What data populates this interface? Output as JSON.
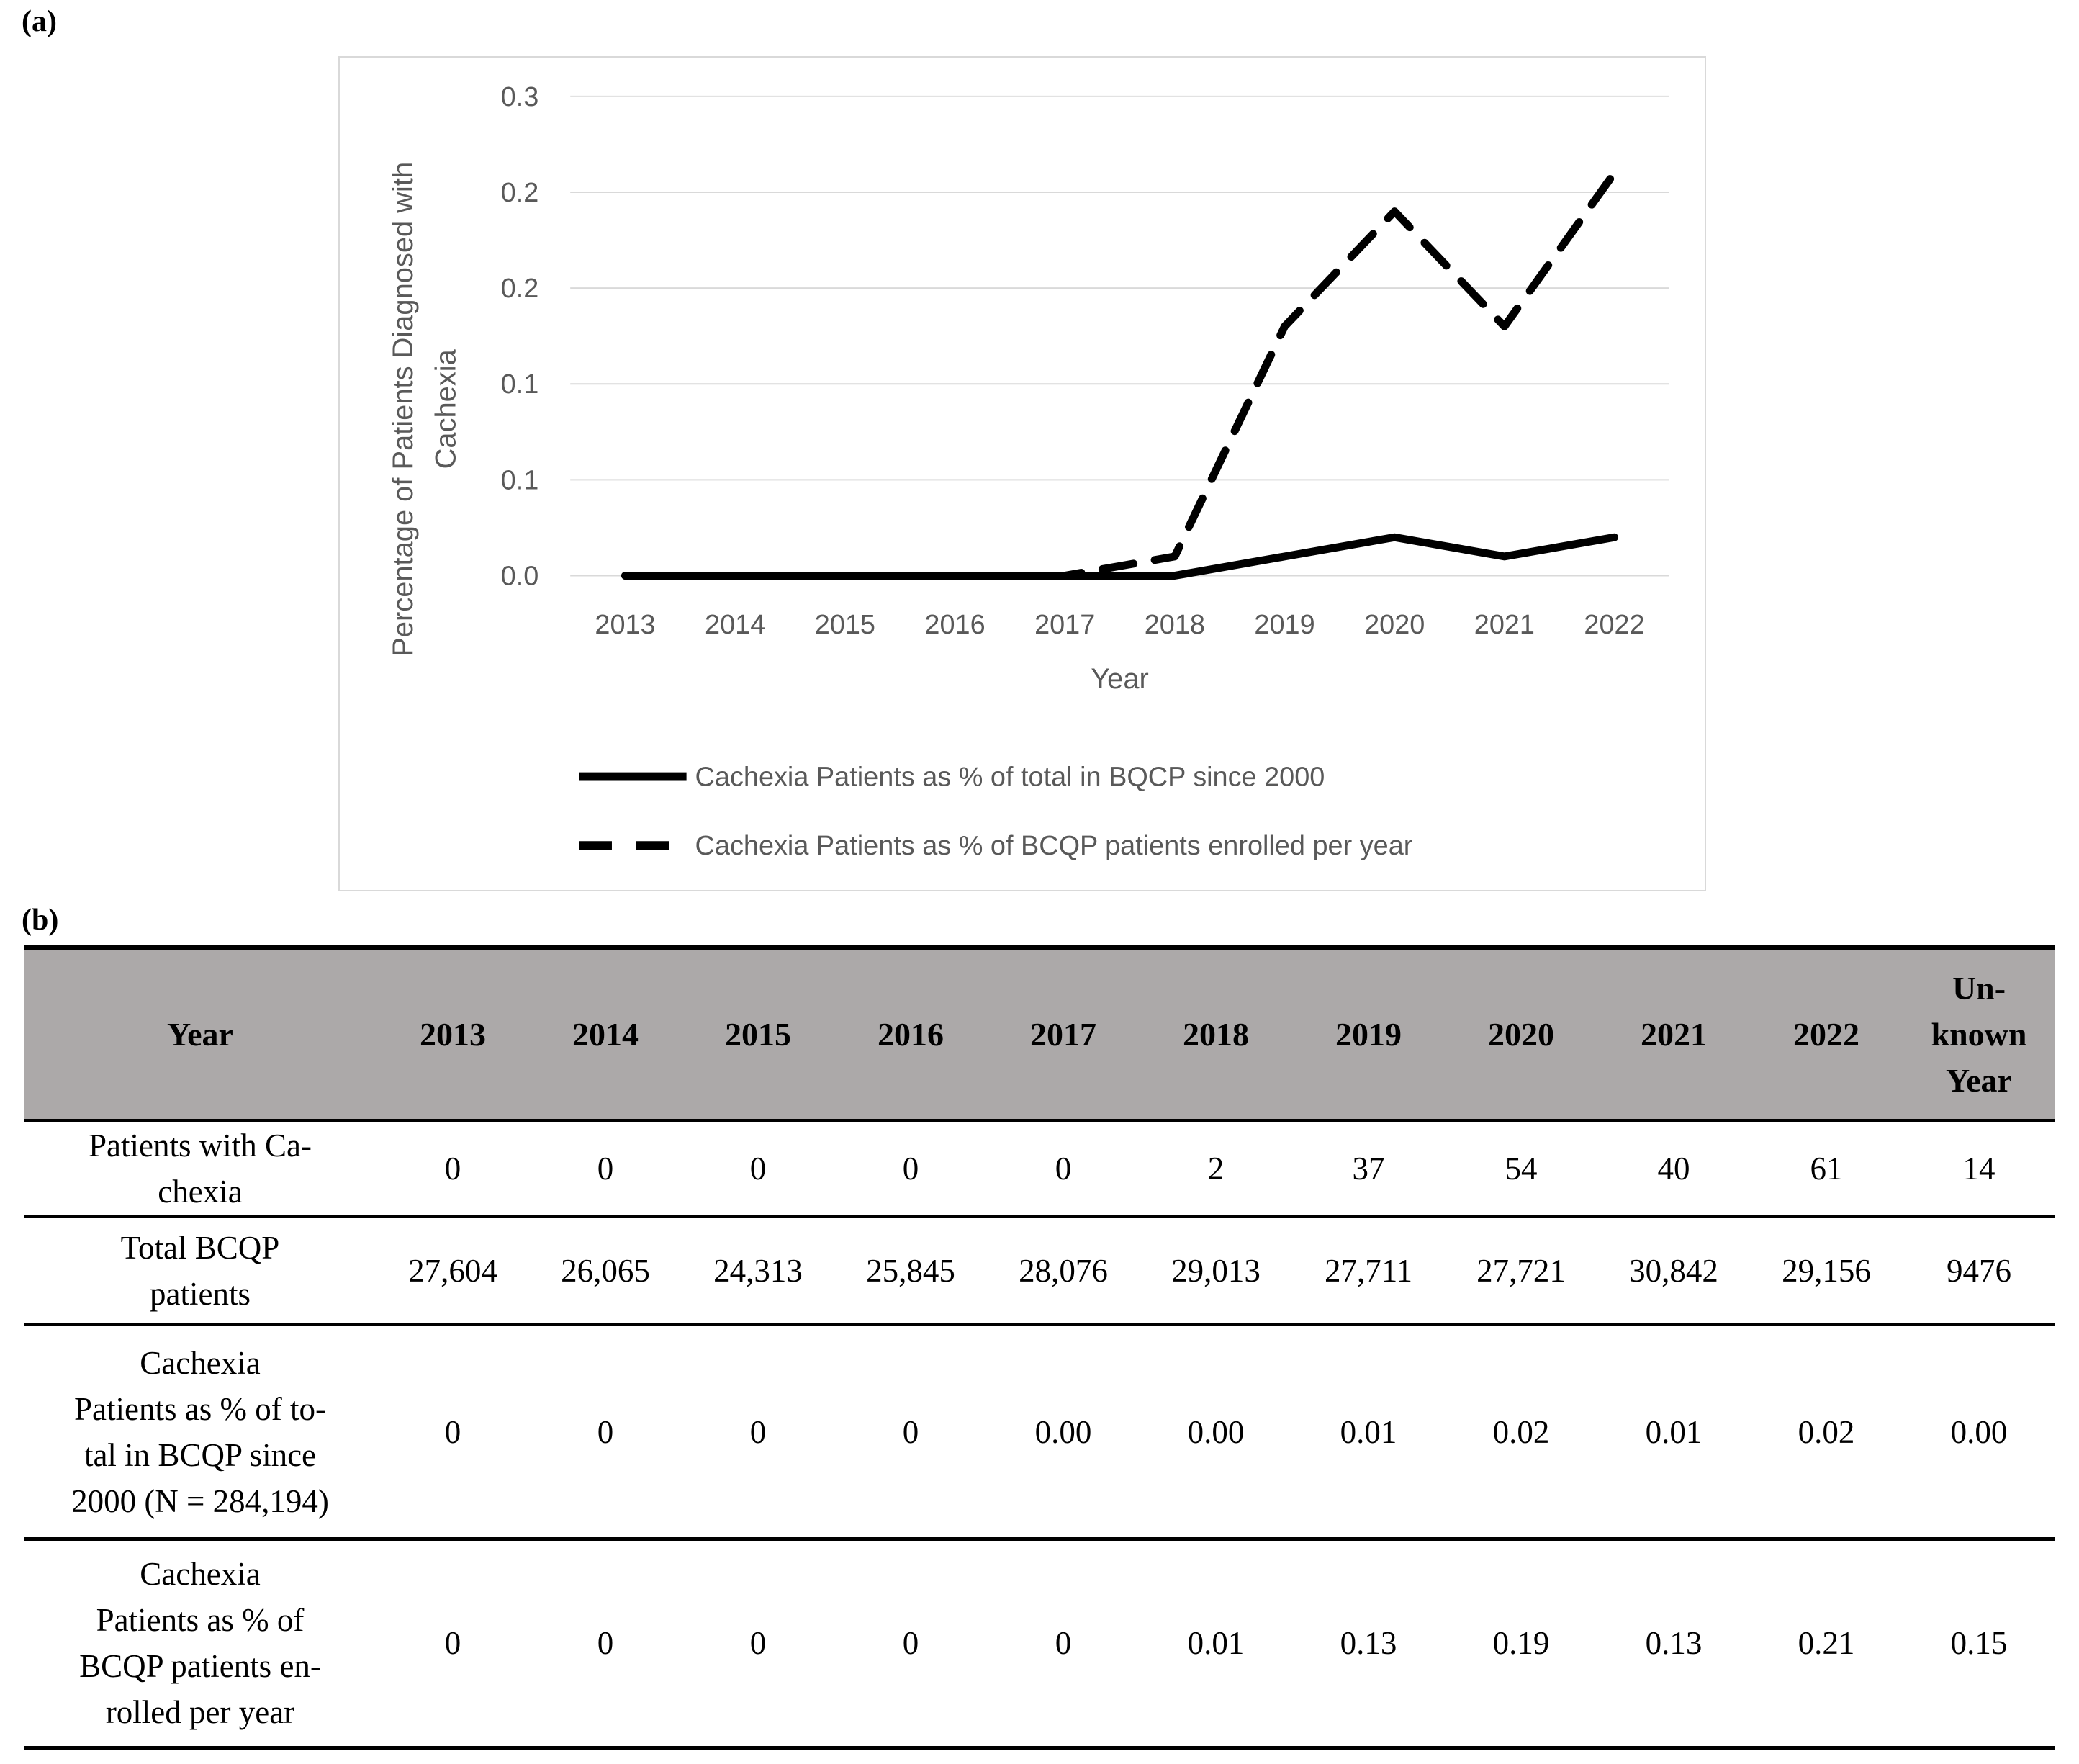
{
  "panel_a_label": "(a)",
  "panel_b_label": "(b)",
  "chart_data": {
    "type": "line",
    "x": [
      2013,
      2014,
      2015,
      2016,
      2017,
      2018,
      2019,
      2020,
      2021,
      2022
    ],
    "xlabel": "Year",
    "ylabel_lines": [
      "Percentage of Patients Diagnosed with",
      "Cachexia"
    ],
    "ylim": [
      0,
      0.25
    ],
    "y_tick_values": [
      0.25,
      0.2,
      0.15,
      0.1,
      0.05,
      0
    ],
    "y_tick_labels": [
      "0.3",
      "0.2",
      "0.2",
      "0.1",
      "0.1",
      "0.0"
    ],
    "grid": true,
    "legend_position": "bottom-left",
    "series": [
      {
        "name": "Cachexia Patients as % of total in BQCP since 2000",
        "line_style": "solid",
        "values": [
          0,
          0,
          0,
          0,
          0,
          0,
          0.01,
          0.02,
          0.01,
          0.02
        ]
      },
      {
        "name": "Cachexia Patients as % of BCQP patients enrolled per year",
        "line_style": "dashed",
        "values": [
          0,
          0,
          0,
          0,
          0,
          0.01,
          0.13,
          0.19,
          0.13,
          0.21
        ]
      }
    ]
  },
  "table": {
    "header": [
      "Year",
      "2013",
      "2014",
      "2015",
      "2016",
      "2017",
      "2018",
      "2019",
      "2020",
      "2021",
      "2022",
      "Un-\nknown\nYear"
    ],
    "rows": [
      {
        "label": "Patients with Ca-\nchexia",
        "values": [
          "0",
          "0",
          "0",
          "0",
          "0",
          "2",
          "37",
          "54",
          "40",
          "61",
          "14"
        ]
      },
      {
        "label": "Total BCQP\npatients",
        "values": [
          "27,604",
          "26,065",
          "24,313",
          "25,845",
          "28,076",
          "29,013",
          "27,711",
          "27,721",
          "30,842",
          "29,156",
          "9476"
        ]
      },
      {
        "label": "Cachexia\nPatients as % of to-\ntal in BCQP since\n2000 (N = 284,194)",
        "values": [
          "0",
          "0",
          "0",
          "0",
          "0.00",
          "0.00",
          "0.01",
          "0.02",
          "0.01",
          "0.02",
          "0.00"
        ]
      },
      {
        "label": "Cachexia\nPatients as % of\nBCQP patients en-\nrolled per year",
        "values": [
          "0",
          "0",
          "0",
          "0",
          "0",
          "0.01",
          "0.13",
          "0.19",
          "0.13",
          "0.21",
          "0.15"
        ]
      }
    ]
  },
  "colors": {
    "header_bg": "#ACA9A9",
    "chart_text": "#595959",
    "gridline": "#D9D9D9",
    "series_line": "#000000",
    "table_border": "#000000"
  }
}
